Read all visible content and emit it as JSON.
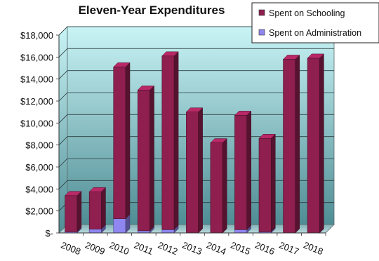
{
  "chart_data": {
    "type": "bar",
    "stacked": true,
    "three_d": true,
    "title": "Eleven-Year Expenditures",
    "xlabel": "",
    "ylabel": "",
    "categories": [
      "2008",
      "2009",
      "2010",
      "2011",
      "2012",
      "2013",
      "2014",
      "2015",
      "2016",
      "2017",
      "2018"
    ],
    "series": [
      {
        "name": "Spent on Administration",
        "color": "#8f86f0",
        "values": [
          100,
          350,
          1300,
          200,
          300,
          0,
          0,
          300,
          100,
          0,
          0
        ]
      },
      {
        "name": "Spent on Schooling",
        "color": "#8e1f4f",
        "values": [
          3300,
          3400,
          13800,
          12800,
          15800,
          11000,
          8200,
          10400,
          8500,
          15800,
          15900
        ]
      }
    ],
    "y_ticks": [
      "$-",
      "$2,000",
      "$4,000",
      "$6,000",
      "$8,000",
      "$10,000",
      "$12,000",
      "$14,000",
      "$16,000",
      "$18,000"
    ],
    "ylim": [
      0,
      18000
    ],
    "y_step": 2000,
    "grid": true,
    "legend_position": "top-right",
    "background_gradient": [
      "#c9f4f6",
      "#4f8d94"
    ]
  }
}
